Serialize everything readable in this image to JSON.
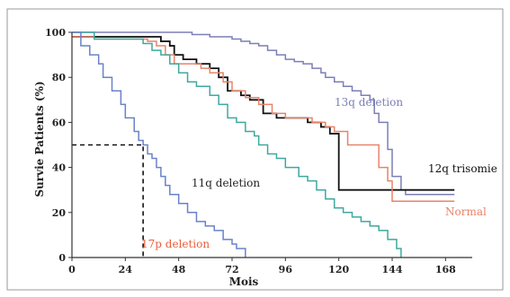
{
  "chart_data": {
    "type": "line",
    "step": true,
    "xlabel": "Mois",
    "ylabel": "Survie Patients (%)",
    "xlim": [
      0,
      180
    ],
    "ylim": [
      0,
      100
    ],
    "xticks": [
      0,
      24,
      48,
      72,
      96,
      120,
      144,
      168
    ],
    "yticks": [
      0,
      20,
      40,
      60,
      80,
      100
    ],
    "grid": false,
    "legend": "inline labels",
    "median_marker": {
      "x": 32,
      "y": 50,
      "color": "#111111",
      "style": "dashed"
    },
    "series": [
      {
        "name": "13q deletion",
        "color": "#7b7fb5",
        "points": [
          [
            0,
            100
          ],
          [
            50,
            100
          ],
          [
            54,
            99
          ],
          [
            62,
            98
          ],
          [
            72,
            97
          ],
          [
            76,
            96
          ],
          [
            80,
            95
          ],
          [
            84,
            94
          ],
          [
            88,
            92
          ],
          [
            92,
            90
          ],
          [
            96,
            88
          ],
          [
            100,
            87
          ],
          [
            104,
            86
          ],
          [
            108,
            84
          ],
          [
            112,
            82
          ],
          [
            114,
            80
          ],
          [
            118,
            78
          ],
          [
            122,
            76
          ],
          [
            126,
            74
          ],
          [
            130,
            72
          ],
          [
            134,
            70
          ],
          [
            136,
            64
          ],
          [
            138,
            60
          ],
          [
            142,
            48
          ],
          [
            144,
            36
          ],
          [
            148,
            30
          ],
          [
            150,
            28
          ],
          [
            172,
            28
          ]
        ]
      },
      {
        "name": "12q trisomie",
        "color": "#111111",
        "points": [
          [
            0,
            98
          ],
          [
            36,
            98
          ],
          [
            40,
            96
          ],
          [
            44,
            94
          ],
          [
            46,
            90
          ],
          [
            50,
            88
          ],
          [
            56,
            86
          ],
          [
            62,
            84
          ],
          [
            66,
            80
          ],
          [
            70,
            74
          ],
          [
            76,
            72
          ],
          [
            80,
            70
          ],
          [
            86,
            64
          ],
          [
            92,
            62
          ],
          [
            102,
            62
          ],
          [
            106,
            60
          ],
          [
            112,
            58
          ],
          [
            116,
            55
          ],
          [
            120,
            30
          ],
          [
            172,
            30
          ]
        ]
      },
      {
        "name": "Normal",
        "color": "#e8836a",
        "points": [
          [
            0,
            98
          ],
          [
            10,
            97
          ],
          [
            30,
            97
          ],
          [
            34,
            96
          ],
          [
            38,
            94
          ],
          [
            42,
            90
          ],
          [
            46,
            86
          ],
          [
            52,
            86
          ],
          [
            58,
            84
          ],
          [
            62,
            82
          ],
          [
            68,
            78
          ],
          [
            72,
            74
          ],
          [
            78,
            71
          ],
          [
            84,
            68
          ],
          [
            90,
            64
          ],
          [
            96,
            62
          ],
          [
            108,
            60
          ],
          [
            114,
            58
          ],
          [
            118,
            56
          ],
          [
            124,
            50
          ],
          [
            134,
            50
          ],
          [
            138,
            40
          ],
          [
            142,
            34
          ],
          [
            144,
            25
          ],
          [
            172,
            25
          ]
        ]
      },
      {
        "name": "11q deletion",
        "color": "#3fa8a0",
        "points": [
          [
            0,
            100
          ],
          [
            10,
            97
          ],
          [
            28,
            97
          ],
          [
            32,
            95
          ],
          [
            36,
            92
          ],
          [
            40,
            90
          ],
          [
            44,
            86
          ],
          [
            48,
            82
          ],
          [
            52,
            78
          ],
          [
            56,
            76
          ],
          [
            62,
            72
          ],
          [
            66,
            68
          ],
          [
            70,
            62
          ],
          [
            74,
            60
          ],
          [
            78,
            56
          ],
          [
            82,
            54
          ],
          [
            84,
            50
          ],
          [
            88,
            46
          ],
          [
            92,
            44
          ],
          [
            96,
            40
          ],
          [
            102,
            36
          ],
          [
            106,
            34
          ],
          [
            110,
            30
          ],
          [
            114,
            26
          ],
          [
            118,
            22
          ],
          [
            122,
            20
          ],
          [
            126,
            18
          ],
          [
            130,
            16
          ],
          [
            134,
            14
          ],
          [
            138,
            12
          ],
          [
            142,
            8
          ],
          [
            146,
            4
          ],
          [
            148,
            0
          ]
        ]
      },
      {
        "name": "17p deletion",
        "color": "#6a82c8",
        "points": [
          [
            0,
            100
          ],
          [
            4,
            94
          ],
          [
            8,
            90
          ],
          [
            12,
            86
          ],
          [
            14,
            80
          ],
          [
            18,
            74
          ],
          [
            22,
            68
          ],
          [
            24,
            62
          ],
          [
            28,
            56
          ],
          [
            30,
            52
          ],
          [
            32,
            50
          ],
          [
            34,
            46
          ],
          [
            36,
            44
          ],
          [
            38,
            40
          ],
          [
            40,
            36
          ],
          [
            42,
            32
          ],
          [
            44,
            28
          ],
          [
            48,
            24
          ],
          [
            52,
            20
          ],
          [
            56,
            16
          ],
          [
            60,
            14
          ],
          [
            64,
            12
          ],
          [
            68,
            8
          ],
          [
            72,
            6
          ],
          [
            74,
            4
          ],
          [
            78,
            0
          ]
        ]
      }
    ]
  }
}
